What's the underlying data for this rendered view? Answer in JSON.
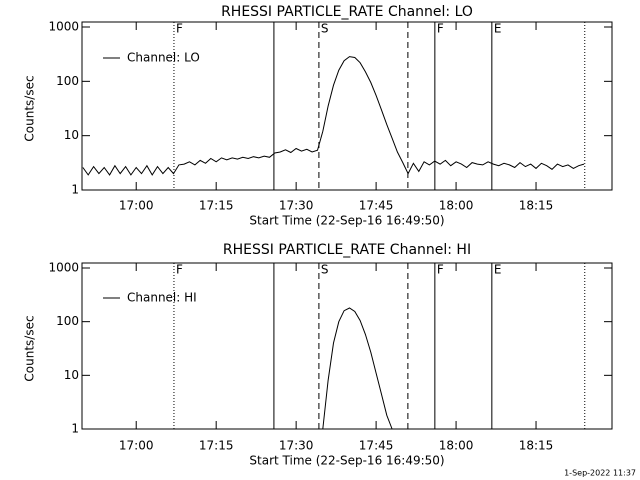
{
  "chart_data": [
    {
      "type": "line",
      "title": "RHESSI PARTICLE_RATE Channel: LO",
      "xlabel": "Start Time (22-Sep-16 16:49:50)",
      "ylabel": "Counts/sec",
      "log_y": true,
      "x": [
        1010,
        1011,
        1012,
        1013,
        1014,
        1015,
        1016,
        1017,
        1018,
        1019,
        1020,
        1021,
        1022,
        1023,
        1024,
        1025,
        1026,
        1027,
        1028,
        1029,
        1030,
        1031,
        1032,
        1033,
        1034,
        1035,
        1036,
        1037,
        1038,
        1039,
        1040,
        1041,
        1042,
        1043,
        1044,
        1045,
        1046,
        1047,
        1048,
        1049,
        1050,
        1051,
        1052,
        1053,
        1054,
        1055,
        1056,
        1057,
        1058,
        1059,
        1060,
        1061,
        1062,
        1063,
        1064,
        1065,
        1066,
        1067,
        1068,
        1069,
        1070,
        1071,
        1072,
        1073,
        1074,
        1075,
        1076,
        1077,
        1078,
        1079,
        1080,
        1081,
        1082,
        1083,
        1084,
        1085,
        1086,
        1087,
        1088,
        1089,
        1090,
        1091,
        1092,
        1093,
        1094,
        1095,
        1096,
        1097,
        1098,
        1099,
        1100,
        1101,
        1102,
        1103,
        1104
      ],
      "series": [
        {
          "name": "Channel: LO",
          "color": "#000000",
          "values": [
            2.6,
            1.9,
            2.7,
            2.0,
            2.6,
            1.9,
            2.8,
            2.0,
            2.7,
            1.9,
            2.6,
            2.0,
            2.8,
            1.9,
            2.7,
            2.0,
            2.6,
            2.0,
            2.9,
            3.0,
            3.3,
            2.9,
            3.5,
            3.1,
            3.8,
            3.3,
            3.9,
            3.6,
            3.9,
            3.7,
            4.0,
            3.8,
            4.1,
            3.9,
            4.2,
            4.0,
            4.8,
            5.0,
            5.5,
            4.9,
            5.8,
            5.2,
            5.6,
            5.0,
            5.4,
            12,
            35,
            85,
            160,
            240,
            285,
            275,
            220,
            150,
            95,
            55,
            30,
            16,
            9,
            5,
            3.2,
            2.0,
            3.1,
            2.2,
            3.3,
            2.9,
            3.4,
            3.0,
            3.5,
            2.8,
            3.3,
            3.0,
            2.6,
            3.2,
            3.0,
            2.9,
            3.3,
            3.0,
            2.8,
            3.1,
            2.9,
            2.6,
            3.2,
            2.7,
            3.0,
            2.5,
            3.1,
            2.8,
            2.4,
            3.0,
            2.7,
            2.9,
            2.5,
            2.8,
            3.0
          ]
        }
      ],
      "xlim": [
        1009.83,
        1109.25
      ],
      "ylim": [
        1,
        1000
      ],
      "xticks": [
        {
          "value": 1020,
          "label": "17:00"
        },
        {
          "value": 1035,
          "label": "17:15"
        },
        {
          "value": 1050,
          "label": "17:30"
        },
        {
          "value": 1065,
          "label": "17:45"
        },
        {
          "value": 1080,
          "label": "18:00"
        },
        {
          "value": 1095,
          "label": "18:15"
        }
      ],
      "yticks": [
        1,
        10,
        100,
        1000
      ],
      "markers": [
        {
          "x": 1027.08,
          "style": "dotted",
          "label": "F"
        },
        {
          "x": 1045.83,
          "style": "solid"
        },
        {
          "x": 1054.27,
          "style": "dashed",
          "label": "S"
        },
        {
          "x": 1070.96,
          "style": "dashed"
        },
        {
          "x": 1076.02,
          "style": "solid",
          "label": "F"
        },
        {
          "x": 1086.71,
          "style": "solid",
          "label": "E"
        },
        {
          "x": 1104.14,
          "style": "dotted"
        }
      ]
    },
    {
      "type": "line",
      "title": "RHESSI PARTICLE_RATE Channel: HI",
      "xlabel": "Start Time (22-Sep-16 16:49:50)",
      "ylabel": "Counts/sec",
      "log_y": true,
      "x": [
        1055,
        1056,
        1057,
        1058,
        1059,
        1060,
        1061,
        1062,
        1063,
        1064,
        1065,
        1066,
        1067,
        1068
      ],
      "series": [
        {
          "name": "Channel: HI",
          "color": "#000000",
          "values": [
            1,
            8,
            40,
            100,
            160,
            180,
            155,
            105,
            58,
            27,
            11,
            4.5,
            1.8,
            1
          ]
        }
      ],
      "xlim": [
        1009.83,
        1109.25
      ],
      "ylim": [
        1,
        1000
      ],
      "xticks": [
        {
          "value": 1020,
          "label": "17:00"
        },
        {
          "value": 1035,
          "label": "17:15"
        },
        {
          "value": 1050,
          "label": "17:30"
        },
        {
          "value": 1065,
          "label": "17:45"
        },
        {
          "value": 1080,
          "label": "18:00"
        },
        {
          "value": 1095,
          "label": "18:15"
        }
      ],
      "yticks": [
        1,
        10,
        100,
        1000
      ],
      "markers": [
        {
          "x": 1027.08,
          "style": "dotted",
          "label": "F"
        },
        {
          "x": 1045.83,
          "style": "solid"
        },
        {
          "x": 1054.27,
          "style": "dashed",
          "label": "S"
        },
        {
          "x": 1070.96,
          "style": "dashed"
        },
        {
          "x": 1076.02,
          "style": "solid",
          "label": "F"
        },
        {
          "x": 1086.71,
          "style": "solid",
          "label": "E"
        },
        {
          "x": 1104.14,
          "style": "dotted"
        }
      ]
    }
  ],
  "footer": "1-Sep-2022 11:37"
}
